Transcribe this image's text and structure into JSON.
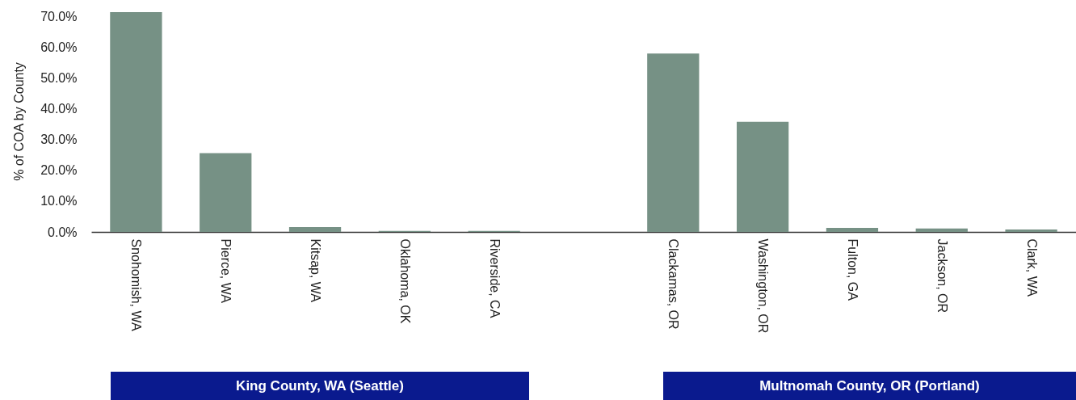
{
  "chart_data": {
    "type": "bar",
    "ylabel": "% of COA by County",
    "categories": [
      "Snohomish, WA",
      "Pierce, WA",
      "Kitsap, WA",
      "Oklahoma, OK",
      "Riverside, CA",
      null,
      "Clackamas, OR",
      "Washington, OR",
      "Fulton, GA",
      "Jackson, OR",
      "Clark, WA"
    ],
    "values": [
      71.5,
      25.6,
      1.6,
      0.3,
      0.3,
      null,
      58.0,
      35.8,
      1.3,
      1.1,
      0.8
    ],
    "color": "#769185",
    "ylim": [
      0,
      72
    ],
    "yticks": [
      {
        "value": 0,
        "label": "0.0%"
      },
      {
        "value": 10,
        "label": "10.0%"
      },
      {
        "value": 20,
        "label": "20.0%"
      },
      {
        "value": 30,
        "label": "30.0%"
      },
      {
        "value": 40,
        "label": "40.0%"
      },
      {
        "value": 50,
        "label": "50.0%"
      },
      {
        "value": 60,
        "label": "60.0%"
      },
      {
        "value": 70,
        "label": "70.0%"
      }
    ],
    "annotations": [
      "King County, WA (Seattle)",
      "Multnomah County, OR (Portland)"
    ]
  }
}
